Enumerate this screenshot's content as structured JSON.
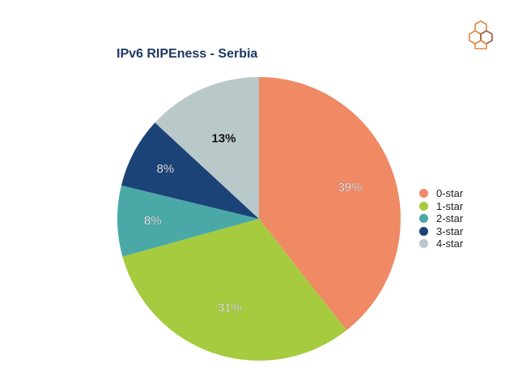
{
  "page": {
    "logo_icon": "ripe-ncc-hexagon-cluster-icon",
    "logo_colors": [
      "#e2873f",
      "#9c5b3d"
    ]
  },
  "chart_data": {
    "type": "pie",
    "title": "IPv6 RIPEness - Serbia",
    "categories": [
      "0-star",
      "1-star",
      "2-star",
      "3-star",
      "4-star"
    ],
    "values": [
      39,
      31,
      8,
      8,
      13
    ],
    "data_labels": [
      "39%",
      "31%",
      "8%",
      "8%",
      "13%"
    ],
    "colors": [
      "#ef8a65",
      "#a6cb3f",
      "#4aa9a7",
      "#1b4377",
      "#b9c9ca"
    ],
    "label_colors": [
      "#ffffff",
      "#ffffff",
      "#ffffff",
      "#ffffff",
      "#111111"
    ],
    "start_angle_deg": 0,
    "direction": "clockwise",
    "legend_position": "right"
  }
}
